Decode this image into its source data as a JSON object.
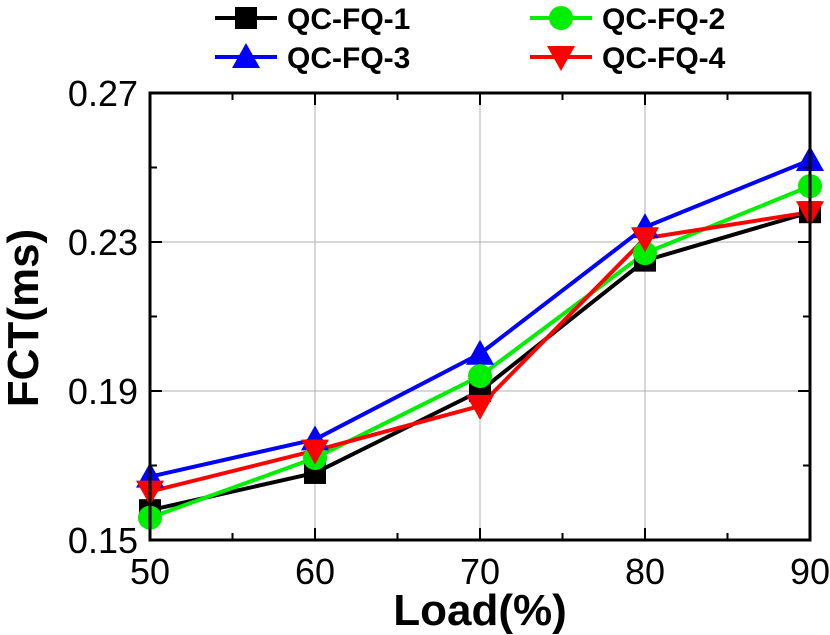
{
  "chart_data": {
    "type": "line",
    "xlabel": "Load(%)",
    "ylabel": "FCT(ms)",
    "x": [
      50,
      60,
      70,
      80,
      90
    ],
    "xlim": [
      50,
      90
    ],
    "ylim": [
      0.15,
      0.27
    ],
    "xticks": [
      "50",
      "60",
      "70",
      "80",
      "90"
    ],
    "yticks": [
      "0.15",
      "0.19",
      "0.23",
      "0.27"
    ],
    "grid": true,
    "legend_position": "top",
    "series": [
      {
        "name": "QC-FQ-1",
        "color": "#000000",
        "marker": "square",
        "values": [
          0.158,
          0.168,
          0.19,
          0.225,
          0.238
        ]
      },
      {
        "name": "QC-FQ-2",
        "color": "#00ee00",
        "marker": "circle",
        "values": [
          0.156,
          0.172,
          0.194,
          0.227,
          0.245
        ]
      },
      {
        "name": "QC-FQ-3",
        "color": "#0000ff",
        "marker": "triangle-up",
        "values": [
          0.167,
          0.177,
          0.2,
          0.234,
          0.252
        ]
      },
      {
        "name": "QC-FQ-4",
        "color": "#ff0000",
        "marker": "triangle-down",
        "values": [
          0.163,
          0.174,
          0.186,
          0.231,
          0.238
        ]
      }
    ]
  }
}
